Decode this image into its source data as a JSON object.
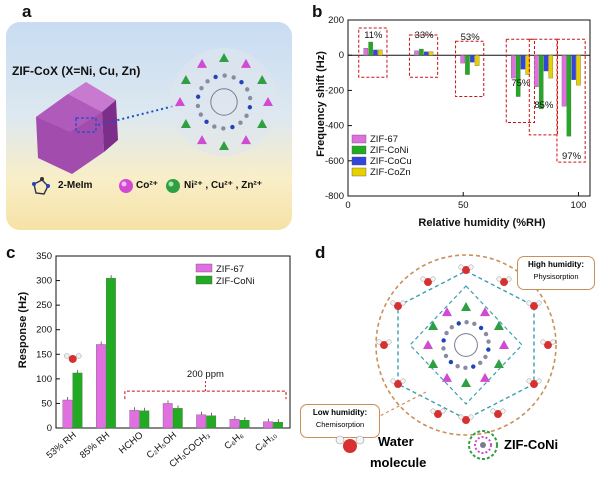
{
  "panels": {
    "a": {
      "label": "a",
      "title": "ZIF-CoX (X=Ni, Cu, Zn)",
      "legend": [
        {
          "label": "2-MeIm",
          "icon": "imidazole-icon"
        },
        {
          "label": "Co²⁺",
          "color": "#cc44cc",
          "icon": "magenta-sphere-icon"
        },
        {
          "label": "Ni²⁺ , Cu²⁺ , Zn²⁺",
          "color": "#2ea043",
          "icon": "green-sphere-icon"
        }
      ]
    },
    "b": {
      "label": "b",
      "ylabel": "Frequency shift (Hz)",
      "xlabel": "Relative humidity (%RH)",
      "pct_labels": [
        "11%",
        "33%",
        "53%",
        "75%",
        "85%",
        "97%"
      ],
      "legend": [
        "ZIF-67",
        "ZIF-CoNi",
        "ZIF-CoCu",
        "ZIF-CoZn"
      ],
      "colors": [
        "#e070e0",
        "#22aa22",
        "#3344dd",
        "#e8d000"
      ]
    },
    "c": {
      "label": "c",
      "ylabel": "Response (Hz)",
      "legend": [
        "ZIF-67",
        "ZIF-CoNi"
      ],
      "colors": [
        "#e070e0",
        "#22aa22"
      ],
      "annotation": "200 ppm"
    },
    "d": {
      "label": "d",
      "high_title": "High humidity:",
      "high_sub": "Physisorption",
      "low_title": "Low humidity:",
      "low_sub": "Chemisorption",
      "legend_water_line1": "Water",
      "legend_water_line2": "molecule",
      "legend_zif": "ZIF-CoNi"
    }
  },
  "chart_data": [
    {
      "type": "bar",
      "panel": "b",
      "x": [
        11,
        33,
        53,
        75,
        85,
        97
      ],
      "xticks": [
        0,
        50,
        100
      ],
      "xlim": [
        0,
        105
      ],
      "ylim": [
        -800,
        200
      ],
      "yticks": [
        -800,
        -600,
        -400,
        -200,
        0,
        200
      ],
      "series": [
        {
          "name": "ZIF-67",
          "values": [
            40,
            25,
            -45,
            -130,
            -180,
            -290
          ]
        },
        {
          "name": "ZIF-CoNi",
          "values": [
            75,
            35,
            -110,
            -235,
            -305,
            -460
          ]
        },
        {
          "name": "ZIF-CoCu",
          "values": [
            30,
            20,
            -40,
            -80,
            -90,
            -140
          ]
        },
        {
          "name": "ZIF-CoZn",
          "values": [
            30,
            20,
            -60,
            -110,
            -130,
            -170
          ]
        }
      ]
    },
    {
      "type": "bar",
      "panel": "c",
      "categories": [
        "53% RH",
        "85% RH",
        "HCHO",
        "C₂H₅OH",
        "CH₃COCH₃",
        "C₆H₆",
        "C₆H₁₀"
      ],
      "ylim": [
        0,
        350
      ],
      "yticks": [
        0,
        50,
        100,
        150,
        200,
        250,
        300,
        350
      ],
      "series": [
        {
          "name": "ZIF-67",
          "values": [
            57,
            170,
            36,
            50,
            27,
            18,
            13
          ]
        },
        {
          "name": "ZIF-CoNi",
          "values": [
            112,
            305,
            35,
            40,
            25,
            16,
            12
          ]
        }
      ]
    }
  ]
}
